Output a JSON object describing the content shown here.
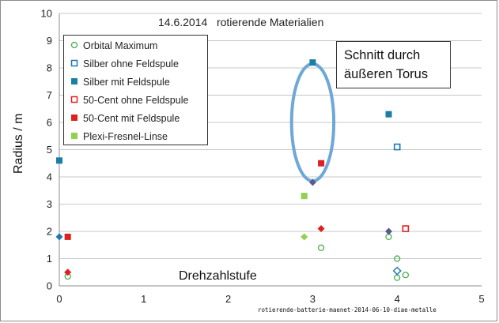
{
  "chart_data": {
    "type": "scatter",
    "title": "14.6.2014   rotierende Materialien",
    "xlabel": "Drehzahlstufe",
    "ylabel": "Radius / m",
    "xlim": [
      0,
      5
    ],
    "ylim": [
      0,
      10
    ],
    "x_ticks": [
      "0",
      "1",
      "2",
      "3",
      "4",
      "5"
    ],
    "y_ticks": [
      "0",
      "1",
      "2",
      "3",
      "4",
      "5",
      "6",
      "7",
      "8",
      "9",
      "10"
    ],
    "grid": "horizontal",
    "legend_position": "top-left",
    "series": [
      {
        "name": "Orbital Maximum",
        "marker": "circle-open",
        "color": "#3aa845",
        "points": [
          [
            0.1,
            0.35
          ],
          [
            3.1,
            1.4
          ],
          [
            3.9,
            1.8
          ],
          [
            4.0,
            1.0
          ],
          [
            4.0,
            0.3
          ],
          [
            4.1,
            0.4
          ]
        ]
      },
      {
        "name": "Silber ohne Feldspule",
        "marker": "square-open",
        "color": "#1f77b4",
        "points": [
          [
            4.0,
            5.1
          ]
        ]
      },
      {
        "name": "Silber mit Feldspule",
        "marker": "square-filled",
        "color": "#1a7fa6",
        "points": [
          [
            0.0,
            4.6
          ],
          [
            3.0,
            8.2
          ],
          [
            3.9,
            6.3
          ]
        ]
      },
      {
        "name": "50-Cent ohne Feldspule",
        "marker": "square-open",
        "color": "#e02020",
        "points": [
          [
            4.1,
            2.1
          ]
        ]
      },
      {
        "name": "50-Cent mit Feldspule",
        "marker": "square-filled",
        "color": "#e02020",
        "points": [
          [
            0.1,
            1.8
          ],
          [
            3.1,
            4.5
          ]
        ]
      },
      {
        "name": "Plexi-Fresnel-Linse",
        "marker": "square-filled",
        "color": "#92d050",
        "points": [
          [
            2.9,
            3.3
          ]
        ]
      },
      {
        "name": "",
        "marker": "diamond-filled",
        "color": "#1f77b4",
        "points": [
          [
            0.0,
            1.8
          ]
        ]
      },
      {
        "name": "",
        "marker": "diamond-filled",
        "color": "#e02020",
        "points": [
          [
            0.1,
            0.5
          ],
          [
            3.1,
            2.1
          ]
        ]
      },
      {
        "name": "",
        "marker": "diamond-filled",
        "color": "#92d050",
        "points": [
          [
            2.9,
            1.8
          ]
        ]
      },
      {
        "name": "",
        "marker": "diamond-filled",
        "color": "#5a5a8c",
        "points": [
          [
            3.0,
            3.8
          ],
          [
            3.9,
            2.0
          ]
        ]
      },
      {
        "name": "",
        "marker": "diamond-open",
        "color": "#1f77b4",
        "points": [
          [
            4.0,
            0.55
          ]
        ]
      }
    ],
    "annotations": [
      {
        "text_lines": [
          "Schnitt durch",
          "äußeren Torus"
        ]
      }
    ],
    "highlight_ellipse": {
      "center": [
        3.0,
        6.0
      ],
      "x_radius": 0.25,
      "y_radius": 2.15,
      "color": "#6fa8d6"
    }
  },
  "footer_text": "rotierende-batterie-maenet-2014-06-10-diae-metalle"
}
